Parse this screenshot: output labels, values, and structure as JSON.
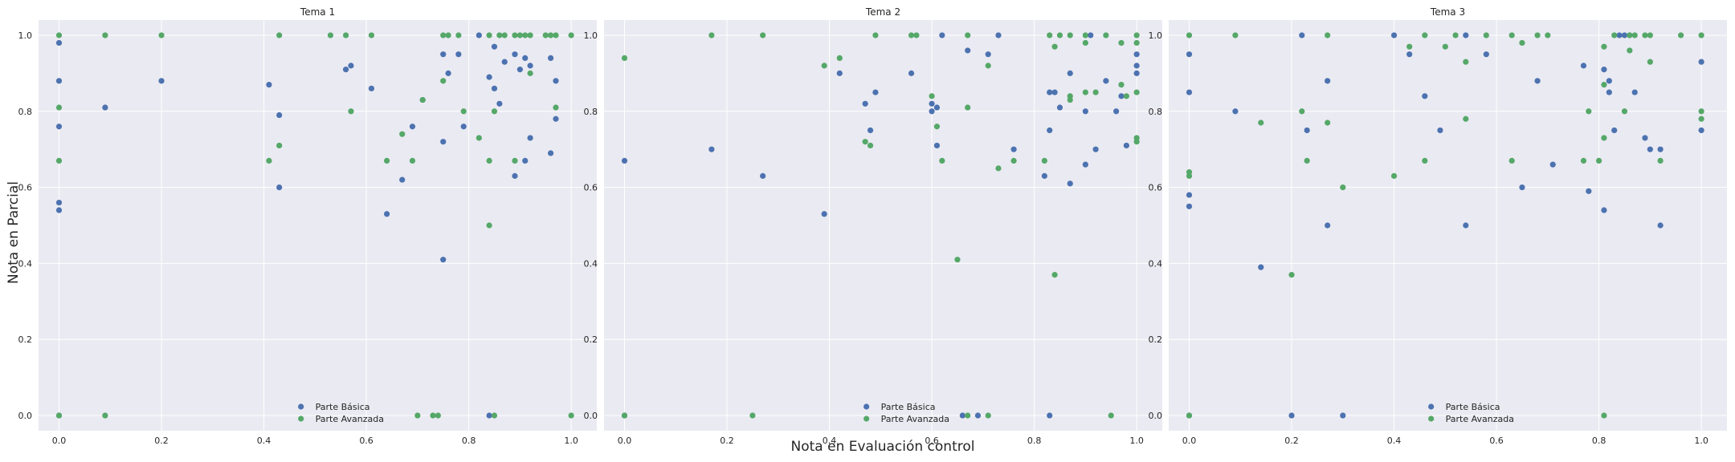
{
  "figure": {
    "xlabel": "Nota en Evaluación control",
    "ylabel": "Nota en Parcial"
  },
  "colors": {
    "background": "#eaeaf2",
    "grid": "#ffffff",
    "basica": "#4c72b0",
    "avanzada": "#55a868"
  },
  "chart_data": [
    {
      "type": "scatter",
      "title": "Tema 1",
      "xlim": [
        -0.04,
        1.05
      ],
      "ylim": [
        -0.04,
        1.04
      ],
      "xticks": [
        0.0,
        0.2,
        0.4,
        0.6,
        0.8,
        1.0
      ],
      "yticks": [
        0.0,
        0.2,
        0.4,
        0.6,
        0.8,
        1.0
      ],
      "legend_position": "lower center",
      "series": [
        {
          "name": "Parte Básica",
          "color": "#4c72b0",
          "points": [
            [
              0,
              0.98
            ],
            [
              0,
              0.88
            ],
            [
              0,
              0.76
            ],
            [
              0,
              0.56
            ],
            [
              0,
              0.54
            ],
            [
              0,
              0
            ],
            [
              0.09,
              0.81
            ],
            [
              0.2,
              0.88
            ],
            [
              0.41,
              0.87
            ],
            [
              0.43,
              0.79
            ],
            [
              0.43,
              0.6
            ],
            [
              0.56,
              0.91
            ],
            [
              0.57,
              0.92
            ],
            [
              0.61,
              0.86
            ],
            [
              0.64,
              0.53
            ],
            [
              0.67,
              0.62
            ],
            [
              0.69,
              0.76
            ],
            [
              0.71,
              0.83
            ],
            [
              0.75,
              0.95
            ],
            [
              0.75,
              0.72
            ],
            [
              0.75,
              0.41
            ],
            [
              0.76,
              0.9
            ],
            [
              0.78,
              0.95
            ],
            [
              0.79,
              0.76
            ],
            [
              0.82,
              1.0
            ],
            [
              0.84,
              0.89
            ],
            [
              0.85,
              0.97
            ],
            [
              0.85,
              0.86
            ],
            [
              0.86,
              0.82
            ],
            [
              0.87,
              0.93
            ],
            [
              0.89,
              0.95
            ],
            [
              0.89,
              0.63
            ],
            [
              0.9,
              0.91
            ],
            [
              0.91,
              0.94
            ],
            [
              0.91,
              0.67
            ],
            [
              0.92,
              0.92
            ],
            [
              0.92,
              0.73
            ],
            [
              0.96,
              0.94
            ],
            [
              0.96,
              0.69
            ],
            [
              0.97,
              0.88
            ],
            [
              0.97,
              0.78
            ],
            [
              0.84,
              0
            ]
          ]
        },
        {
          "name": "Parte Avanzada",
          "color": "#55a868",
          "points": [
            [
              0,
              1.0
            ],
            [
              0,
              0.81
            ],
            [
              0,
              0.67
            ],
            [
              0,
              0
            ],
            [
              0.09,
              1.0
            ],
            [
              0.09,
              0
            ],
            [
              0.2,
              1.0
            ],
            [
              0.41,
              0.67
            ],
            [
              0.43,
              1.0
            ],
            [
              0.43,
              0.71
            ],
            [
              0.53,
              1.0
            ],
            [
              0.56,
              1.0
            ],
            [
              0.57,
              0.8
            ],
            [
              0.61,
              1.0
            ],
            [
              0.64,
              0.67
            ],
            [
              0.67,
              0.74
            ],
            [
              0.69,
              0.67
            ],
            [
              0.7,
              0
            ],
            [
              0.71,
              0.83
            ],
            [
              0.73,
              0
            ],
            [
              0.74,
              0
            ],
            [
              0.75,
              1.0
            ],
            [
              0.75,
              0.88
            ],
            [
              0.76,
              1.0
            ],
            [
              0.78,
              1.0
            ],
            [
              0.79,
              0.8
            ],
            [
              0.82,
              0.73
            ],
            [
              0.84,
              1.0
            ],
            [
              0.84,
              0.67
            ],
            [
              0.84,
              0.5
            ],
            [
              0.85,
              0.8
            ],
            [
              0.85,
              0
            ],
            [
              0.86,
              1.0
            ],
            [
              0.87,
              1.0
            ],
            [
              0.89,
              1.0
            ],
            [
              0.89,
              0.67
            ],
            [
              0.9,
              1.0
            ],
            [
              0.91,
              1.0
            ],
            [
              0.92,
              1.0
            ],
            [
              0.92,
              0.9
            ],
            [
              0.95,
              1.0
            ],
            [
              0.96,
              1.0
            ],
            [
              0.97,
              0.81
            ],
            [
              0.97,
              1.0
            ],
            [
              1.0,
              1.0
            ],
            [
              1.0,
              0
            ]
          ]
        }
      ]
    },
    {
      "type": "scatter",
      "title": "Tema 2",
      "xlim": [
        -0.04,
        1.05
      ],
      "ylim": [
        -0.04,
        1.04
      ],
      "xticks": [
        0.0,
        0.2,
        0.4,
        0.6,
        0.8,
        1.0
      ],
      "yticks": [
        0.0,
        0.2,
        0.4,
        0.6,
        0.8,
        1.0
      ],
      "legend_position": "lower center",
      "series": [
        {
          "name": "Parte Básica",
          "color": "#4c72b0",
          "points": [
            [
              0,
              0.67
            ],
            [
              0,
              0
            ],
            [
              0.17,
              0.7
            ],
            [
              0.27,
              0.63
            ],
            [
              0.39,
              0.53
            ],
            [
              0.42,
              0.9
            ],
            [
              0.47,
              0.82
            ],
            [
              0.48,
              0.75
            ],
            [
              0.49,
              0.85
            ],
            [
              0.56,
              0.9
            ],
            [
              0.6,
              0.82
            ],
            [
              0.6,
              0.8
            ],
            [
              0.61,
              0.81
            ],
            [
              0.61,
              0.71
            ],
            [
              0.62,
              1.0
            ],
            [
              0.66,
              0
            ],
            [
              0.67,
              0.96
            ],
            [
              0.69,
              0
            ],
            [
              0.71,
              0.95
            ],
            [
              0.73,
              1.0
            ],
            [
              0.76,
              0.7
            ],
            [
              0.82,
              0.63
            ],
            [
              0.83,
              0.85
            ],
            [
              0.83,
              0.75
            ],
            [
              0.84,
              0.85
            ],
            [
              0.85,
              0.81
            ],
            [
              0.87,
              0.9
            ],
            [
              0.87,
              0.61
            ],
            [
              0.9,
              0.8
            ],
            [
              0.9,
              0.66
            ],
            [
              0.91,
              1.0
            ],
            [
              0.92,
              0.7
            ],
            [
              0.94,
              0.88
            ],
            [
              0.96,
              0.8
            ],
            [
              0.97,
              0.84
            ],
            [
              0.98,
              0.71
            ],
            [
              1.0,
              0.95
            ],
            [
              1.0,
              0.92
            ],
            [
              1.0,
              0.9
            ],
            [
              0.83,
              0
            ]
          ]
        },
        {
          "name": "Parte Avanzada",
          "color": "#55a868",
          "points": [
            [
              0,
              0.94
            ],
            [
              0,
              0
            ],
            [
              0.17,
              1.0
            ],
            [
              0.25,
              0
            ],
            [
              0.27,
              1.0
            ],
            [
              0.39,
              0.92
            ],
            [
              0.42,
              0.94
            ],
            [
              0.47,
              0.72
            ],
            [
              0.48,
              0.71
            ],
            [
              0.49,
              1.0
            ],
            [
              0.56,
              1.0
            ],
            [
              0.57,
              1.0
            ],
            [
              0.6,
              0.84
            ],
            [
              0.61,
              0.76
            ],
            [
              0.62,
              0.67
            ],
            [
              0.65,
              0.41
            ],
            [
              0.67,
              1.0
            ],
            [
              0.67,
              0.81
            ],
            [
              0.67,
              0
            ],
            [
              0.71,
              0.92
            ],
            [
              0.71,
              0
            ],
            [
              0.73,
              0.65
            ],
            [
              0.76,
              0.67
            ],
            [
              0.82,
              0.67
            ],
            [
              0.83,
              1.0
            ],
            [
              0.84,
              0.97
            ],
            [
              0.84,
              0.37
            ],
            [
              0.85,
              1.0
            ],
            [
              0.87,
              1.0
            ],
            [
              0.87,
              0.84
            ],
            [
              0.87,
              0.83
            ],
            [
              0.9,
              1.0
            ],
            [
              0.9,
              0.98
            ],
            [
              0.9,
              0.85
            ],
            [
              0.92,
              0.85
            ],
            [
              0.94,
              1.0
            ],
            [
              0.95,
              0
            ],
            [
              0.97,
              0.98
            ],
            [
              0.97,
              0.87
            ],
            [
              0.98,
              0.84
            ],
            [
              1.0,
              1.0
            ],
            [
              1.0,
              0.98
            ],
            [
              1.0,
              0.85
            ],
            [
              1.0,
              0.73
            ],
            [
              1.0,
              0.72
            ]
          ]
        }
      ]
    },
    {
      "type": "scatter",
      "title": "Tema 3",
      "xlim": [
        -0.04,
        1.05
      ],
      "ylim": [
        -0.04,
        1.04
      ],
      "xticks": [
        0.0,
        0.2,
        0.4,
        0.6,
        0.8,
        1.0
      ],
      "yticks": [
        0.0,
        0.2,
        0.4,
        0.6,
        0.8,
        1.0
      ],
      "legend_position": "lower center",
      "series": [
        {
          "name": "Parte Básica",
          "color": "#4c72b0",
          "points": [
            [
              0,
              0.95
            ],
            [
              0,
              0.85
            ],
            [
              0,
              0.58
            ],
            [
              0,
              0.55
            ],
            [
              0,
              0
            ],
            [
              0.09,
              0.8
            ],
            [
              0.14,
              0.39
            ],
            [
              0.2,
              0
            ],
            [
              0.22,
              1.0
            ],
            [
              0.23,
              0.75
            ],
            [
              0.27,
              0.88
            ],
            [
              0.27,
              0.5
            ],
            [
              0.3,
              0
            ],
            [
              0.4,
              1.0
            ],
            [
              0.43,
              0.95
            ],
            [
              0.46,
              0.84
            ],
            [
              0.49,
              0.75
            ],
            [
              0.54,
              1.0
            ],
            [
              0.54,
              0.5
            ],
            [
              0.58,
              0.95
            ],
            [
              0.65,
              0.6
            ],
            [
              0.68,
              0.88
            ],
            [
              0.71,
              0.66
            ],
            [
              0.77,
              0.92
            ],
            [
              0.78,
              0.59
            ],
            [
              0.81,
              0.54
            ],
            [
              0.81,
              0.91
            ],
            [
              0.82,
              0.88
            ],
            [
              0.82,
              0.85
            ],
            [
              0.83,
              0.75
            ],
            [
              0.84,
              1.0
            ],
            [
              0.85,
              1.0
            ],
            [
              0.86,
              1.0
            ],
            [
              0.87,
              0.85
            ],
            [
              0.89,
              0.73
            ],
            [
              0.9,
              0.7
            ],
            [
              0.92,
              0.7
            ],
            [
              0.92,
              0.5
            ],
            [
              1.0,
              0.93
            ],
            [
              1.0,
              0.75
            ]
          ]
        },
        {
          "name": "Parte Avanzada",
          "color": "#55a868",
          "points": [
            [
              0,
              1.0
            ],
            [
              0,
              0.64
            ],
            [
              0,
              0.63
            ],
            [
              0,
              0
            ],
            [
              0.09,
              1.0
            ],
            [
              0.14,
              0.77
            ],
            [
              0.2,
              0.37
            ],
            [
              0.22,
              0.8
            ],
            [
              0.23,
              0.67
            ],
            [
              0.27,
              1.0
            ],
            [
              0.27,
              0.77
            ],
            [
              0.3,
              0.6
            ],
            [
              0.4,
              0.63
            ],
            [
              0.43,
              0.97
            ],
            [
              0.46,
              1.0
            ],
            [
              0.46,
              0.67
            ],
            [
              0.5,
              0.97
            ],
            [
              0.52,
              1.0
            ],
            [
              0.54,
              0.93
            ],
            [
              0.54,
              0.78
            ],
            [
              0.58,
              1.0
            ],
            [
              0.63,
              1.0
            ],
            [
              0.63,
              0.67
            ],
            [
              0.65,
              0.98
            ],
            [
              0.68,
              1.0
            ],
            [
              0.7,
              1.0
            ],
            [
              0.77,
              0.67
            ],
            [
              0.78,
              0.8
            ],
            [
              0.8,
              0.67
            ],
            [
              0.81,
              0
            ],
            [
              0.81,
              0.97
            ],
            [
              0.81,
              0.87
            ],
            [
              0.81,
              0.73
            ],
            [
              0.83,
              1.0
            ],
            [
              0.85,
              0.8
            ],
            [
              0.86,
              0.96
            ],
            [
              0.86,
              1.0
            ],
            [
              0.87,
              1.0
            ],
            [
              0.89,
              1.0
            ],
            [
              0.9,
              0.93
            ],
            [
              0.9,
              1.0
            ],
            [
              0.92,
              0.67
            ],
            [
              0.96,
              1.0
            ],
            [
              1.0,
              1.0
            ],
            [
              1.0,
              0.8
            ],
            [
              1.0,
              0.78
            ]
          ]
        }
      ]
    }
  ]
}
